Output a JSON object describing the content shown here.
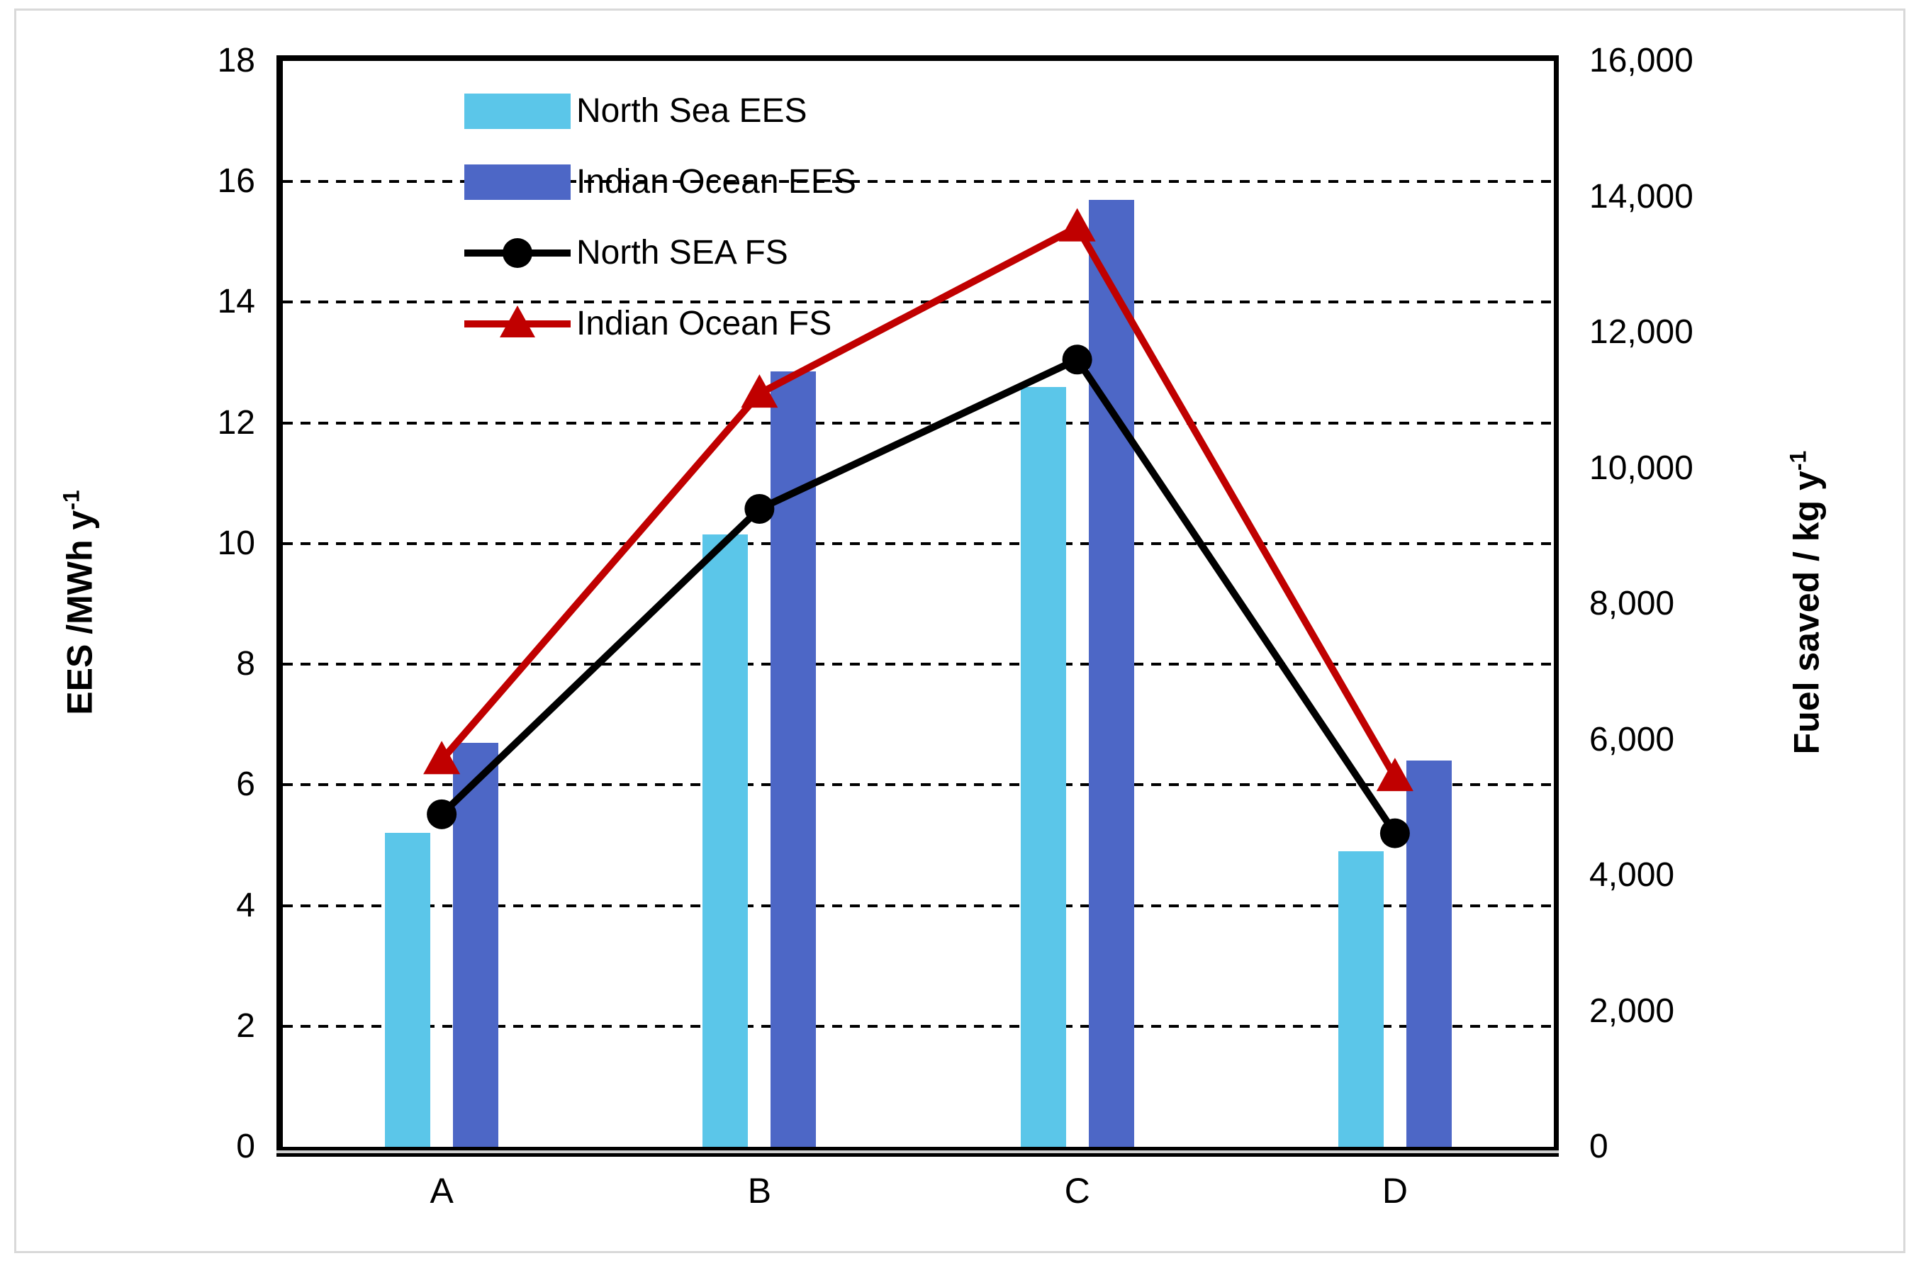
{
  "figure": {
    "background": "#FFFFFF",
    "border_color": "#D9D9D9"
  },
  "chart_data": {
    "type": "bar+line",
    "title": "",
    "categories": [
      "A",
      "B",
      "C",
      "D"
    ],
    "series": [
      {
        "name": "North Sea EES",
        "type": "bar",
        "axis": "left",
        "color": "#5BC6E9",
        "values": [
          5.2,
          10.15,
          12.6,
          4.9
        ]
      },
      {
        "name": "Indian Ocean EES",
        "type": "bar",
        "axis": "left",
        "color": "#4D67C6",
        "values": [
          6.7,
          12.85,
          15.7,
          6.4
        ]
      },
      {
        "name": "North SEA FS",
        "type": "line",
        "axis": "right",
        "color": "#000000",
        "marker": "circle",
        "values": [
          4900,
          9400,
          11600,
          4620
        ]
      },
      {
        "name": "Indian Ocean FS",
        "type": "line",
        "axis": "right",
        "color": "#C00000",
        "marker": "triangle",
        "values": [
          5700,
          11100,
          13550,
          5450
        ]
      }
    ],
    "left_axis": {
      "title": "EES /MWh y",
      "title_sup": "-1",
      "min": 0,
      "max": 18,
      "tick_step": 2,
      "tick_labels": [
        "0",
        "2",
        "4",
        "6",
        "8",
        "10",
        "12",
        "14",
        "16",
        "18"
      ]
    },
    "right_axis": {
      "title": "Fuel saved / kg y",
      "title_sup": "-1",
      "min": 0,
      "max": 16000,
      "tick_step": 2000,
      "tick_labels": [
        "0",
        "2,000",
        "4,000",
        "6,000",
        "8,000",
        "10,000",
        "12,000",
        "14,000",
        "16,000"
      ]
    },
    "gridlines": {
      "axis": "left",
      "at": [
        2,
        4,
        6,
        8,
        10,
        12,
        14,
        16
      ],
      "style": "dashed",
      "color": "#000000"
    },
    "legend": {
      "position": "top-left-inside"
    }
  }
}
